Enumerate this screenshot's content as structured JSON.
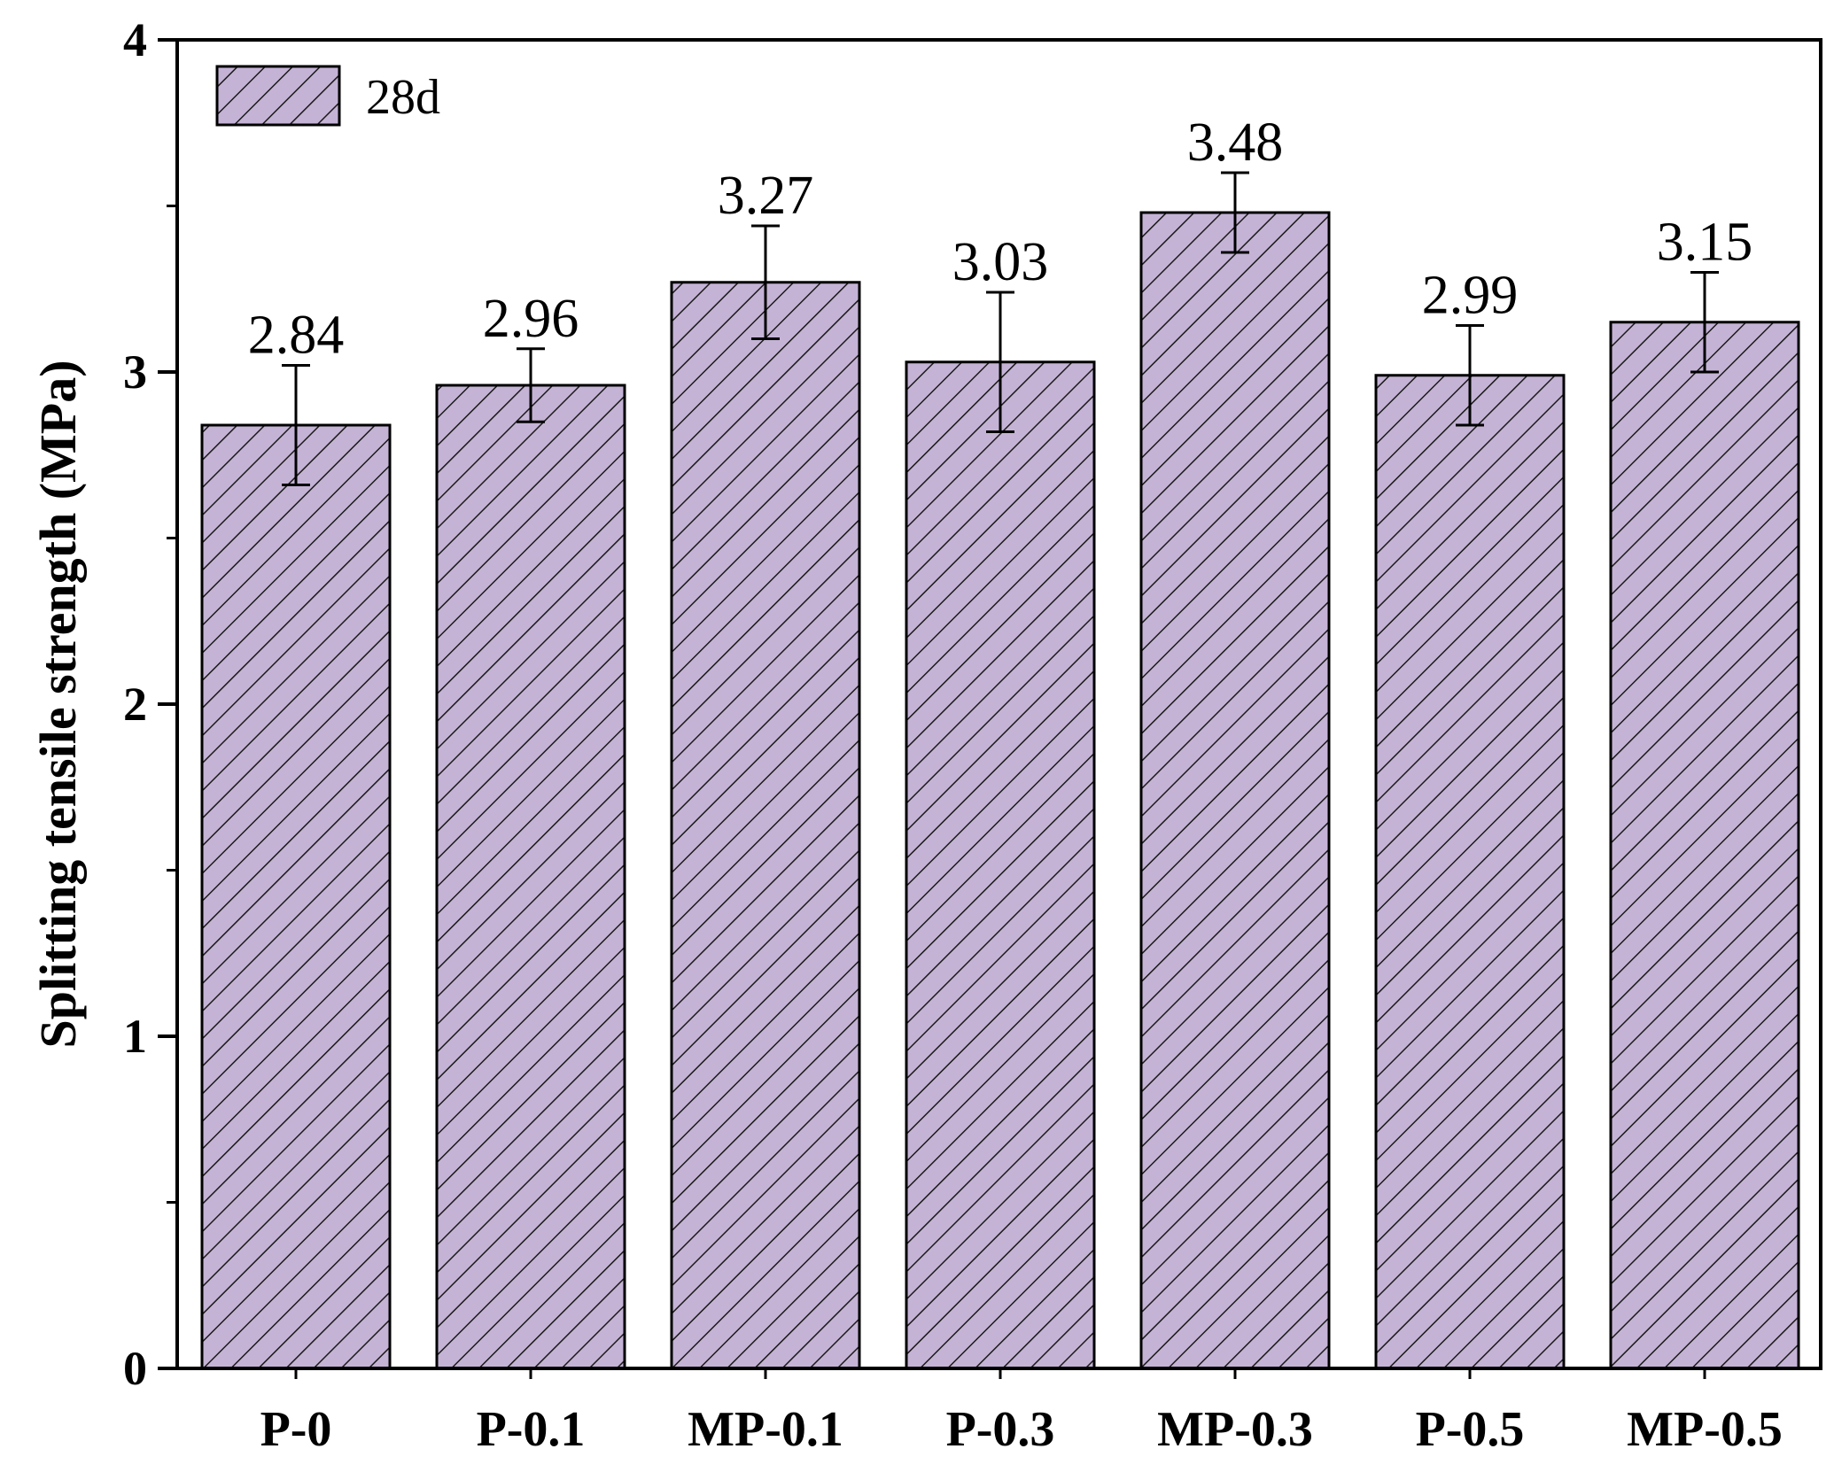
{
  "chart_data": {
    "type": "bar",
    "categories": [
      "P-0",
      "P-0.1",
      "MP-0.1",
      "P-0.3",
      "MP-0.3",
      "P-0.5",
      "MP-0.5"
    ],
    "series": [
      {
        "name": "28d",
        "values": [
          2.84,
          2.96,
          3.27,
          3.03,
          3.48,
          2.99,
          3.15
        ],
        "errors": [
          0.18,
          0.11,
          0.17,
          0.21,
          0.12,
          0.15,
          0.15
        ]
      }
    ],
    "data_labels": [
      "2.84",
      "2.96",
      "3.27",
      "3.03",
      "3.48",
      "2.99",
      "3.15"
    ],
    "ylabel": "Splitting tensile strength (MPa)",
    "xlabel": "",
    "ylim": [
      0,
      4
    ],
    "yticks": [
      0,
      1,
      2,
      3,
      4
    ],
    "ytick_labels": [
      "0",
      "1",
      "2",
      "3",
      "4"
    ],
    "grid": false,
    "legend_position": "top-left",
    "bar_color": "#c5b3d6",
    "hatch": "diagonal",
    "error_bars": true
  }
}
